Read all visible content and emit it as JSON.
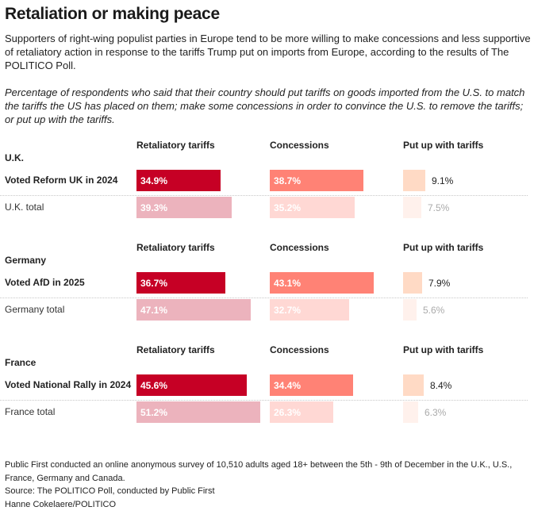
{
  "title": "Retaliation or making peace",
  "subtitle": "Supporters of right-wing populist parties in Europe tend to be more willing to make concessions and less supportive of retaliatory action in response to the tariffs Trump put on imports from Europe, according to the results of The POLITICO Poll.",
  "note": "Percentage of respondents who said that their country should put tariffs on goods imported from the U.S. to match the tariffs the US has placed on them; make some concessions in order to convince the U.S. to remove the tariffs; or put up with the tariffs.",
  "footer": {
    "methodology": "Public First conducted an online anonymous survey of 10,510 adults aged 18+ between the 5th - 9th of December in the U.K., U.S., France, Germany and Canada.",
    "source": "Source: The POLITICO Poll, conducted by Public First",
    "credit": "Hanne Cokelaere/POLITICO"
  },
  "chart_data": {
    "type": "bar",
    "orientation": "horizontal",
    "title": "Retaliation or making peace",
    "unit": "%",
    "columns": [
      "Retaliatory tariffs",
      "Concessions",
      "Put up with tariffs"
    ],
    "colors": {
      "Retaliatory tariffs": {
        "highlight": "#c60025",
        "total": "#ecb3bd"
      },
      "Concessions": {
        "highlight": "#ff8275",
        "total": "#ffd8d4"
      },
      "Put up with tariffs": {
        "highlight": "#ffdac5",
        "total": "#fff1ec"
      }
    },
    "label_colors": {
      "inside": "#ffffff",
      "outside_highlight": "#222222",
      "outside_total": "#aaaaaa"
    },
    "groups": [
      {
        "country": "U.K.",
        "rows": [
          {
            "label": "Voted Reform UK in 2024",
            "highlight": true,
            "values": [
              34.9,
              38.7,
              9.1
            ],
            "labels": [
              "34.9%",
              "38.7%",
              "9.1%"
            ]
          },
          {
            "label": "U.K. total",
            "highlight": false,
            "values": [
              39.3,
              35.2,
              7.5
            ],
            "labels": [
              "39.3%",
              "35.2%",
              "7.5%"
            ]
          }
        ]
      },
      {
        "country": "Germany",
        "rows": [
          {
            "label": "Voted AfD in 2025",
            "highlight": true,
            "values": [
              36.7,
              43.1,
              7.9
            ],
            "labels": [
              "36.7%",
              "43.1%",
              "7.9%"
            ]
          },
          {
            "label": "Germany total",
            "highlight": false,
            "values": [
              47.1,
              32.7,
              5.6
            ],
            "labels": [
              "47.1%",
              "32.7%",
              "5.6%"
            ]
          }
        ]
      },
      {
        "country": "France",
        "rows": [
          {
            "label": "Voted National Rally in 2024",
            "highlight": true,
            "values": [
              45.6,
              34.4,
              8.4
            ],
            "labels": [
              "45.6%",
              "34.4%",
              "8.4%"
            ]
          },
          {
            "label": "France total",
            "highlight": false,
            "values": [
              51.2,
              26.3,
              6.3
            ],
            "labels": [
              "51.2%",
              "26.3%",
              "6.3%"
            ]
          }
        ]
      }
    ],
    "xlabel": "",
    "ylabel": "",
    "grid": false
  }
}
